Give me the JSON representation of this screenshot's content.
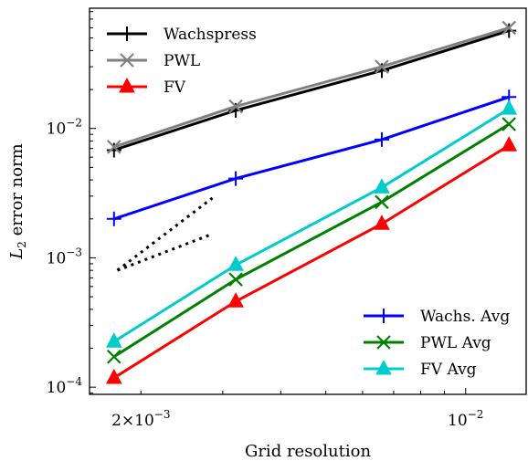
{
  "chart_data": {
    "type": "line",
    "x_scale": "log",
    "y_scale": "log",
    "xlabel": "Grid resolution",
    "ylabel": "L2 error norm",
    "ylabel_parts": {
      "L": "L",
      "sub": "2",
      "rest": " error norm"
    },
    "xlim": [
      0.00155,
      0.0135
    ],
    "ylim": [
      8.8e-05,
      0.085
    ],
    "x_ticks_major": [
      {
        "value": 0.002,
        "mantissa": "2×10",
        "exp": "−3"
      },
      {
        "value": 0.01,
        "mantissa": "10",
        "exp": "−2"
      }
    ],
    "y_ticks_major": [
      {
        "value": 0.0001,
        "mantissa": "10",
        "exp": "−4"
      },
      {
        "value": 0.001,
        "mantissa": "10",
        "exp": "−3"
      },
      {
        "value": 0.01,
        "mantissa": "10",
        "exp": "−2"
      }
    ],
    "x": [
      0.00175,
      0.0032,
      0.0066,
      0.0124
    ],
    "series": [
      {
        "name": "Wachspress",
        "color": "#000000",
        "marker": "plus",
        "legend": "upper-left",
        "values": [
          0.0068,
          0.0138,
          0.028,
          0.057
        ]
      },
      {
        "name": "PWL",
        "color": "#808080",
        "marker": "x",
        "legend": "upper-left",
        "values": [
          0.0072,
          0.0148,
          0.03,
          0.06
        ]
      },
      {
        "name": "FV",
        "color": "#ff0000",
        "marker": "triangle",
        "legend": "upper-left",
        "values": [
          0.000118,
          0.00046,
          0.00183,
          0.0074
        ]
      },
      {
        "name": "Wachs. Avg",
        "color": "#0000ff",
        "marker": "plus",
        "legend": "lower-right",
        "values": [
          0.002,
          0.0041,
          0.0082,
          0.0175
        ]
      },
      {
        "name": "PWL Avg",
        "color": "#008000",
        "marker": "x",
        "legend": "lower-right",
        "values": [
          0.000172,
          0.00068,
          0.0027,
          0.0108
        ]
      },
      {
        "name": "FV Avg",
        "color": "#00cccc",
        "marker": "triangle",
        "legend": "lower-right",
        "values": [
          0.000225,
          0.00088,
          0.0035,
          0.0142
        ]
      }
    ],
    "reference_lines": [
      {
        "style": "dotted",
        "color": "#000000",
        "x": [
          0.00178,
          0.00285
        ],
        "y": [
          0.0008,
          0.0029
        ]
      },
      {
        "style": "dotted",
        "color": "#000000",
        "x": [
          0.00178,
          0.00285
        ],
        "y": [
          0.0008,
          0.00153
        ]
      }
    ],
    "legends": {
      "upper-left": "top-left",
      "lower-right": "bottom-right"
    },
    "grid": false
  }
}
